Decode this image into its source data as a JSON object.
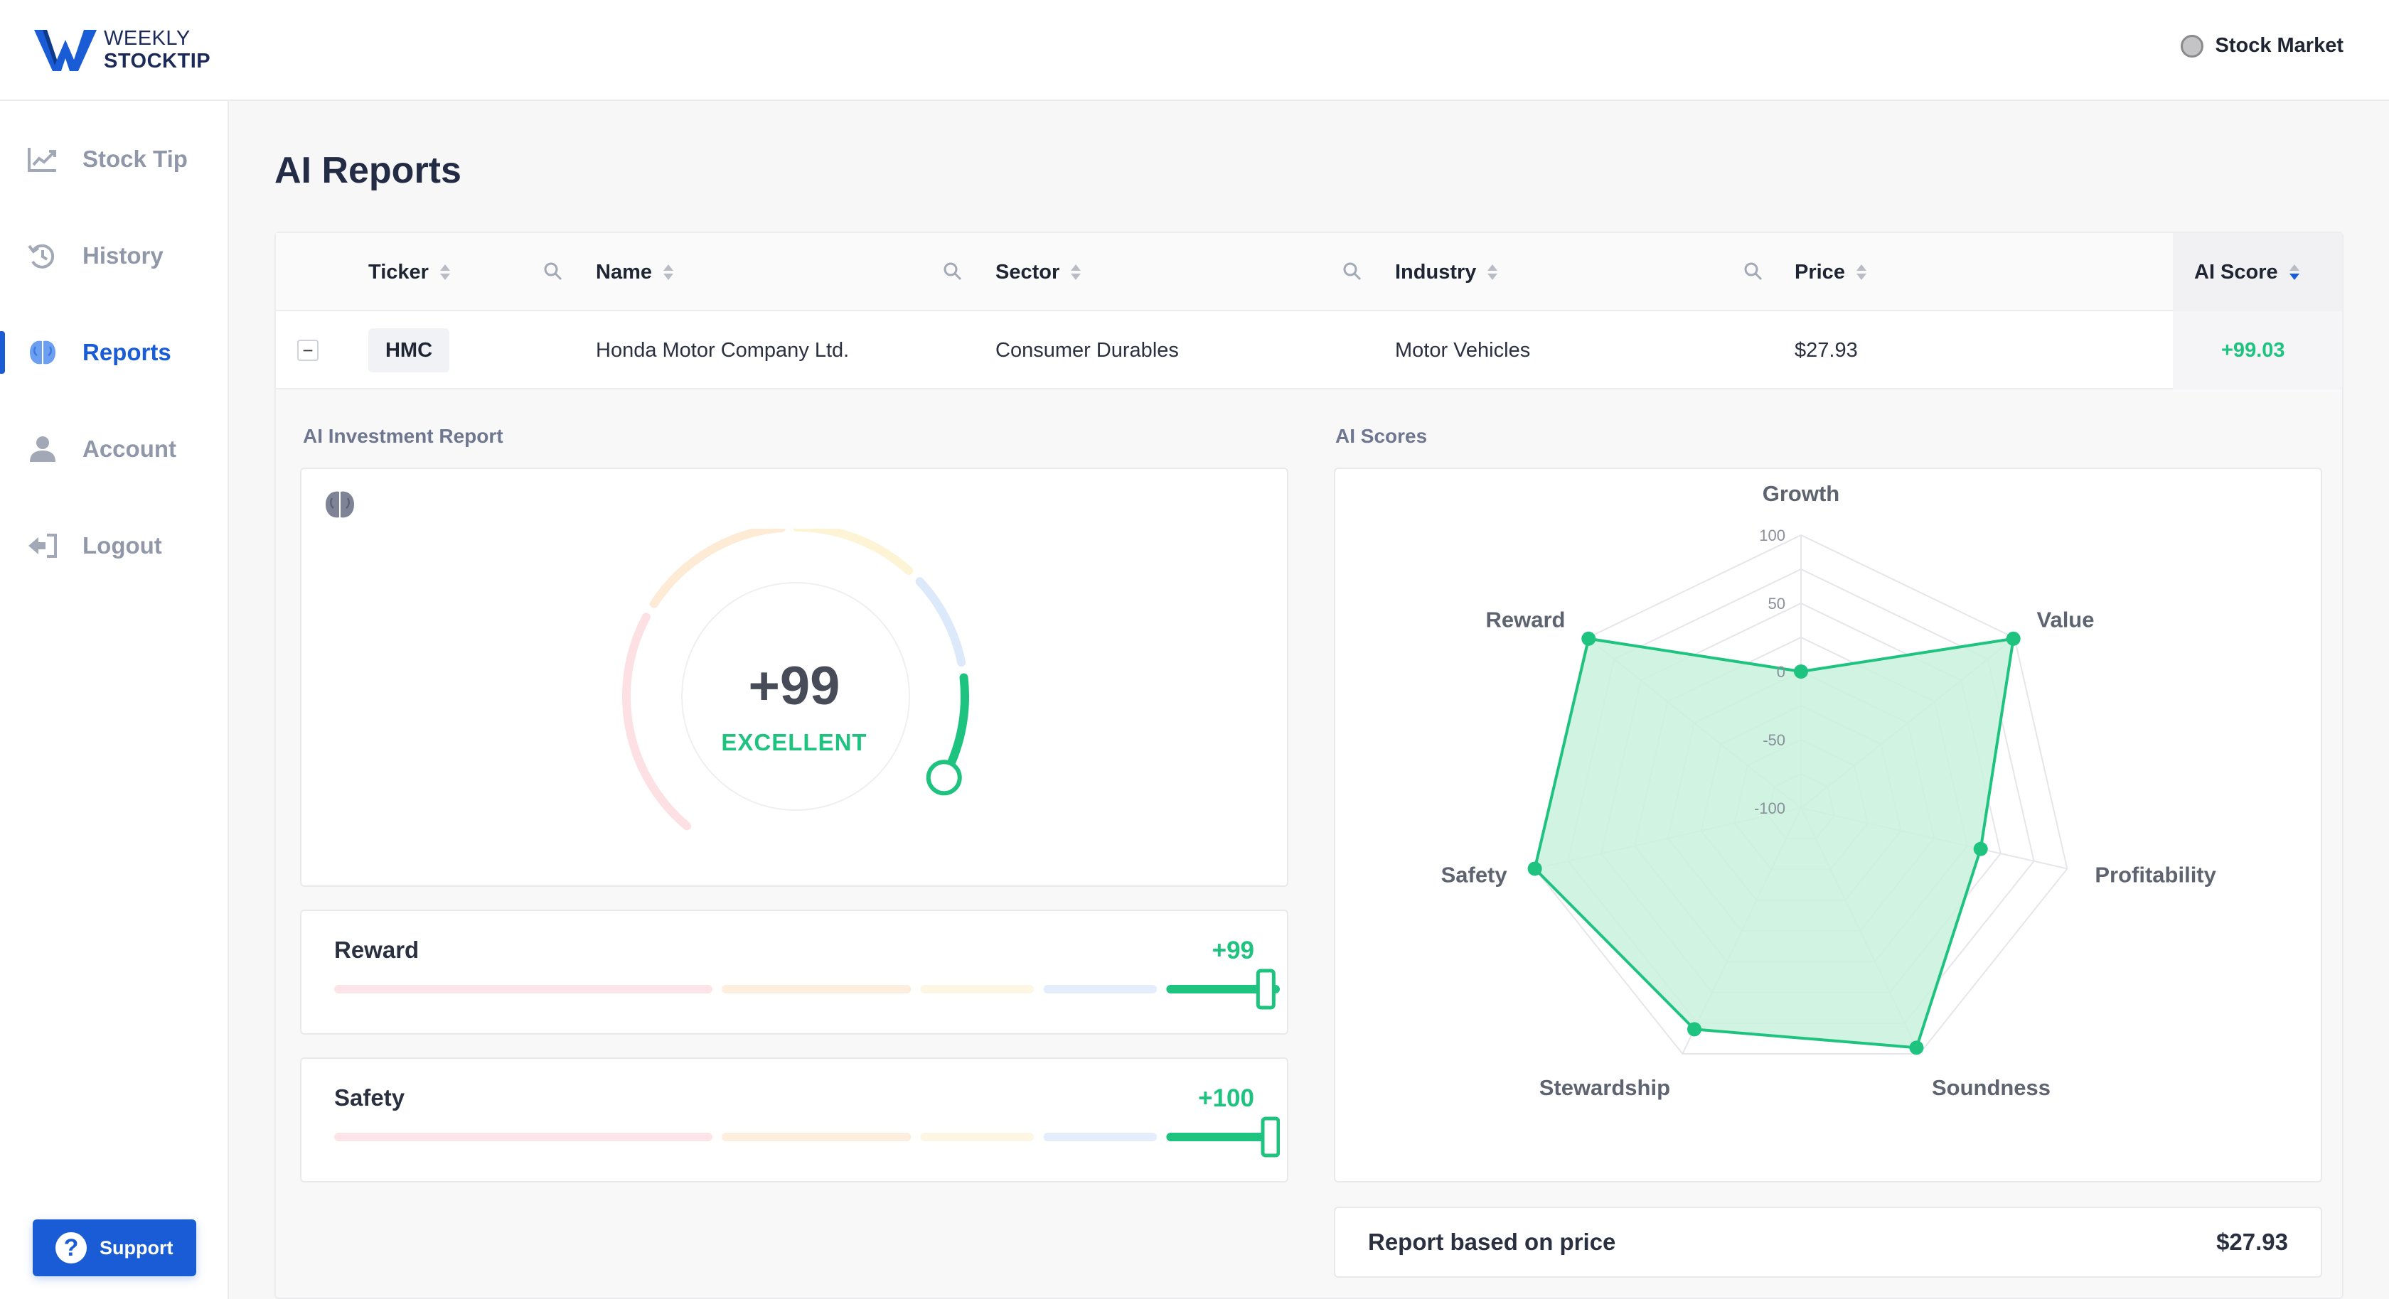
{
  "brand": {
    "line1": "WEEKLY",
    "line2": "STOCKTIP"
  },
  "header": {
    "market_label": "Stock Market"
  },
  "sidebar": {
    "items": [
      {
        "label": "Stock Tip",
        "icon": "chart-line-icon",
        "active": false
      },
      {
        "label": "History",
        "icon": "history-icon",
        "active": false
      },
      {
        "label": "Reports",
        "icon": "brain-icon",
        "active": true
      },
      {
        "label": "Account",
        "icon": "user-icon",
        "active": false
      },
      {
        "label": "Logout",
        "icon": "logout-icon",
        "active": false
      }
    ],
    "support_label": "Support"
  },
  "page": {
    "title": "AI Reports"
  },
  "table": {
    "columns": [
      "Ticker",
      "Name",
      "Sector",
      "Industry",
      "Price",
      "AI Score"
    ],
    "row": {
      "ticker": "HMC",
      "name": "Honda Motor Company Ltd.",
      "sector": "Consumer Durables",
      "industry": "Motor Vehicles",
      "price": "$27.93",
      "ai_score": "+99.03"
    }
  },
  "report": {
    "section_label": "AI Investment Report",
    "gauge": {
      "value": "+99",
      "label": "EXCELLENT",
      "fraction": 0.995
    },
    "metrics": [
      {
        "name": "Reward",
        "value": "+99",
        "level": 0.995
      },
      {
        "name": "Safety",
        "value": "+100",
        "level": 1.0
      }
    ]
  },
  "scores": {
    "section_label": "AI Scores",
    "price_label": "Report based on price",
    "price_value": "$27.93"
  },
  "chart_data": {
    "type": "radar",
    "axes": [
      "Growth",
      "Value",
      "Profitability",
      "Soundness",
      "Stewardship",
      "Safety",
      "Reward"
    ],
    "ticks": [
      "100",
      "50",
      "0",
      "-50",
      "-100"
    ],
    "range": [
      -100,
      100
    ],
    "values": [
      0,
      99,
      35,
      95,
      80,
      100,
      99
    ]
  },
  "colors": {
    "accent": "#1a5cd6",
    "positive": "#1ec37f",
    "radar_fill": "#c9f1dd"
  }
}
